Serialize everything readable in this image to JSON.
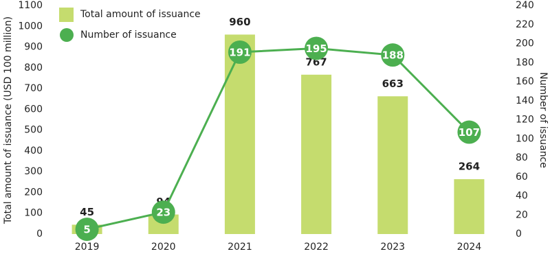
{
  "chart_data": {
    "type": "bar",
    "categories": [
      "2019",
      "2020",
      "2021",
      "2022",
      "2023",
      "2024"
    ],
    "series": [
      {
        "name": "Total amount of issuance",
        "type": "bar",
        "color": "#c5dc6e",
        "values": [
          45,
          94,
          960,
          767,
          663,
          264
        ]
      },
      {
        "name": "Number of issuance",
        "type": "line",
        "axis": "y2",
        "color": "#4caf50",
        "values": [
          5,
          23,
          191,
          195,
          188,
          107
        ]
      }
    ],
    "ylabel": "Total amount of issuance (USD 100 million)",
    "y2label": "Number of issuance",
    "ylim": [
      0,
      1100
    ],
    "yticks": [
      0,
      100,
      200,
      300,
      400,
      500,
      600,
      700,
      800,
      900,
      1000,
      1100
    ],
    "y2lim": [
      0,
      240
    ],
    "y2ticks": [
      0,
      20,
      40,
      60,
      80,
      100,
      120,
      140,
      160,
      180,
      200,
      220,
      240
    ],
    "legend": "upper left",
    "grid": false
  }
}
